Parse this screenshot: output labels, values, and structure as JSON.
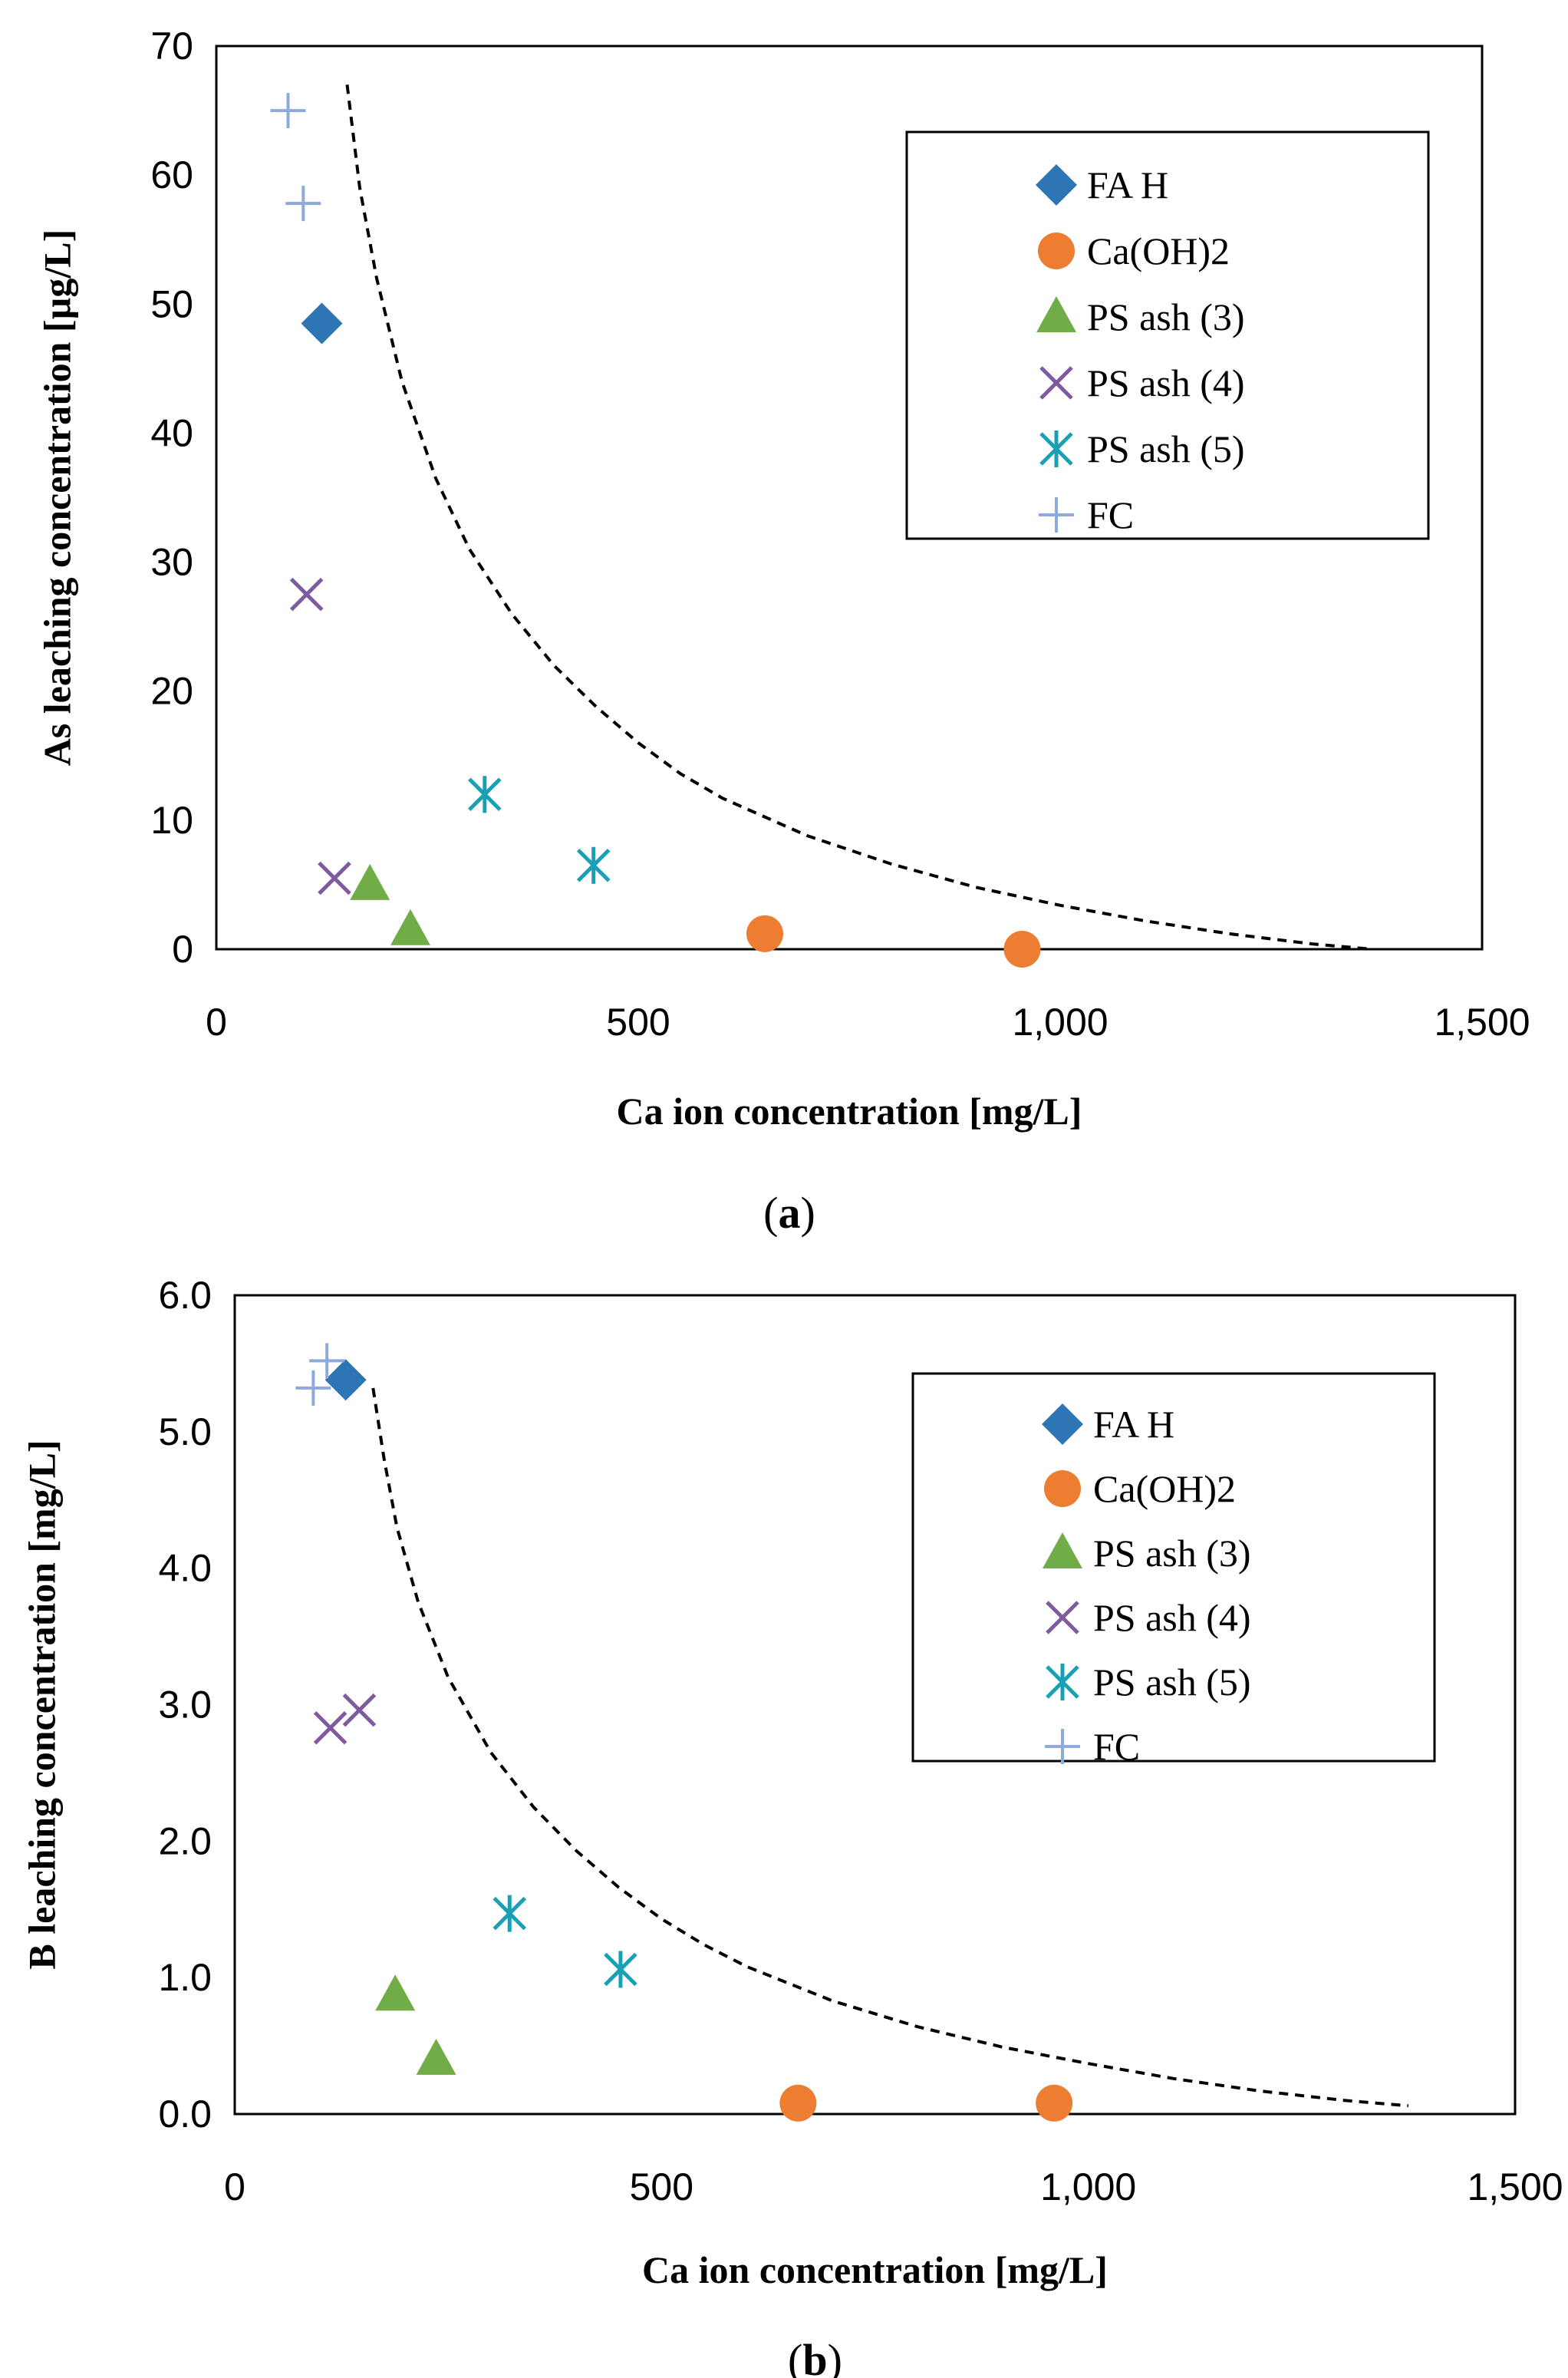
{
  "colors": {
    "fa_h": "#2e75b6",
    "caoh2": "#ed7d31",
    "ps3": "#70ad47",
    "ps4": "#7e5b9e",
    "ps5": "#1aa0b4",
    "fc": "#8eaadb",
    "curve": "#000000"
  },
  "chart_data": [
    {
      "type": "scatter",
      "panel_label_open": "(",
      "panel_label_letter": "a",
      "panel_label_close": ")",
      "xlabel": "Ca ion concentration [mg/L]",
      "ylabel": "As leaching concentration [µg/L]",
      "xlim": [
        0,
        1500
      ],
      "ylim": [
        0,
        70
      ],
      "xticks": [
        0,
        500,
        1000,
        1500
      ],
      "xtick_labels": [
        "0",
        "500",
        "1,000",
        "1,500"
      ],
      "yticks": [
        0,
        10,
        20,
        30,
        40,
        50,
        60,
        70
      ],
      "ytick_labels": [
        "0",
        "10",
        "20",
        "30",
        "40",
        "50",
        "60",
        "70"
      ],
      "legend_position": "top-right",
      "grid": false,
      "series": [
        {
          "name": "FA H",
          "marker": "diamond",
          "color_key": "fa_h",
          "points": [
            [
              125,
              48.5
            ]
          ]
        },
        {
          "name": "Ca(OH)2",
          "marker": "circle",
          "color_key": "caoh2",
          "points": [
            [
              650,
              1.2
            ],
            [
              955,
              0.0
            ]
          ]
        },
        {
          "name": "PS ash (3)",
          "marker": "triangle",
          "color_key": "ps3",
          "points": [
            [
              182,
              5.0
            ],
            [
              230,
              1.5
            ]
          ]
        },
        {
          "name": "PS ash (4)",
          "marker": "x",
          "color_key": "ps4",
          "points": [
            [
              107,
              27.5
            ],
            [
              140,
              5.5
            ]
          ]
        },
        {
          "name": "PS ash (5)",
          "marker": "asterisk",
          "color_key": "ps5",
          "points": [
            [
              318,
              12.0
            ],
            [
              447,
              6.5
            ]
          ]
        },
        {
          "name": "FC",
          "marker": "plus",
          "color_key": "fc",
          "points": [
            [
              85,
              65.0
            ],
            [
              103,
              57.8
            ]
          ]
        }
      ],
      "curve": {
        "style": "dashed",
        "points": [
          [
            155,
            67
          ],
          [
            170,
            59
          ],
          [
            190,
            52
          ],
          [
            220,
            44
          ],
          [
            260,
            36.5
          ],
          [
            300,
            31
          ],
          [
            350,
            26
          ],
          [
            400,
            22
          ],
          [
            450,
            18.8
          ],
          [
            500,
            16
          ],
          [
            550,
            13.6
          ],
          [
            600,
            11.7
          ],
          [
            700,
            8.8
          ],
          [
            800,
            6.6
          ],
          [
            900,
            4.8
          ],
          [
            1000,
            3.4
          ],
          [
            1100,
            2.2
          ],
          [
            1200,
            1.2
          ],
          [
            1300,
            0.4
          ],
          [
            1370,
            0
          ]
        ]
      }
    },
    {
      "type": "scatter",
      "panel_label_open": "(",
      "panel_label_letter": "b",
      "panel_label_close": ")",
      "xlabel": "Ca ion concentration [mg/L]",
      "ylabel": "B leaching concentration [mg/L]",
      "xlim": [
        0,
        1500
      ],
      "ylim": [
        0,
        6
      ],
      "xticks": [
        0,
        500,
        1000,
        1500
      ],
      "xtick_labels": [
        "0",
        "500",
        "1,000",
        "1,500"
      ],
      "yticks": [
        0,
        1,
        2,
        3,
        4,
        5,
        6
      ],
      "ytick_labels": [
        "0.0",
        "1.0",
        "2.0",
        "3.0",
        "4.0",
        "5.0",
        "6.0"
      ],
      "legend_position": "top-right",
      "grid": false,
      "series": [
        {
          "name": "FA H",
          "marker": "diamond",
          "color_key": "fa_h",
          "points": [
            [
              130,
              5.38
            ]
          ]
        },
        {
          "name": "Ca(OH)2",
          "marker": "circle",
          "color_key": "caoh2",
          "points": [
            [
              660,
              0.08
            ],
            [
              960,
              0.08
            ]
          ]
        },
        {
          "name": "PS ash (3)",
          "marker": "triangle",
          "color_key": "ps3",
          "points": [
            [
              188,
              0.87
            ],
            [
              236,
              0.4
            ]
          ]
        },
        {
          "name": "PS ash (4)",
          "marker": "x",
          "color_key": "ps4",
          "points": [
            [
              112,
              2.83
            ],
            [
              146,
              2.96
            ]
          ]
        },
        {
          "name": "PS ash (5)",
          "marker": "asterisk",
          "color_key": "ps5",
          "points": [
            [
              322,
              1.47
            ],
            [
              452,
              1.06
            ]
          ]
        },
        {
          "name": "FC",
          "marker": "plus",
          "color_key": "fc",
          "points": [
            [
              92,
              5.32
            ],
            [
              108,
              5.52
            ]
          ]
        }
      ],
      "curve": {
        "style": "dashed",
        "points": [
          [
            162,
            5.32
          ],
          [
            175,
            4.8
          ],
          [
            190,
            4.3
          ],
          [
            215,
            3.75
          ],
          [
            250,
            3.2
          ],
          [
            300,
            2.65
          ],
          [
            350,
            2.25
          ],
          [
            400,
            1.93
          ],
          [
            450,
            1.66
          ],
          [
            500,
            1.43
          ],
          [
            550,
            1.24
          ],
          [
            600,
            1.08
          ],
          [
            700,
            0.83
          ],
          [
            800,
            0.64
          ],
          [
            900,
            0.49
          ],
          [
            1000,
            0.37
          ],
          [
            1100,
            0.26
          ],
          [
            1200,
            0.17
          ],
          [
            1300,
            0.1
          ],
          [
            1375,
            0.06
          ]
        ]
      }
    }
  ]
}
